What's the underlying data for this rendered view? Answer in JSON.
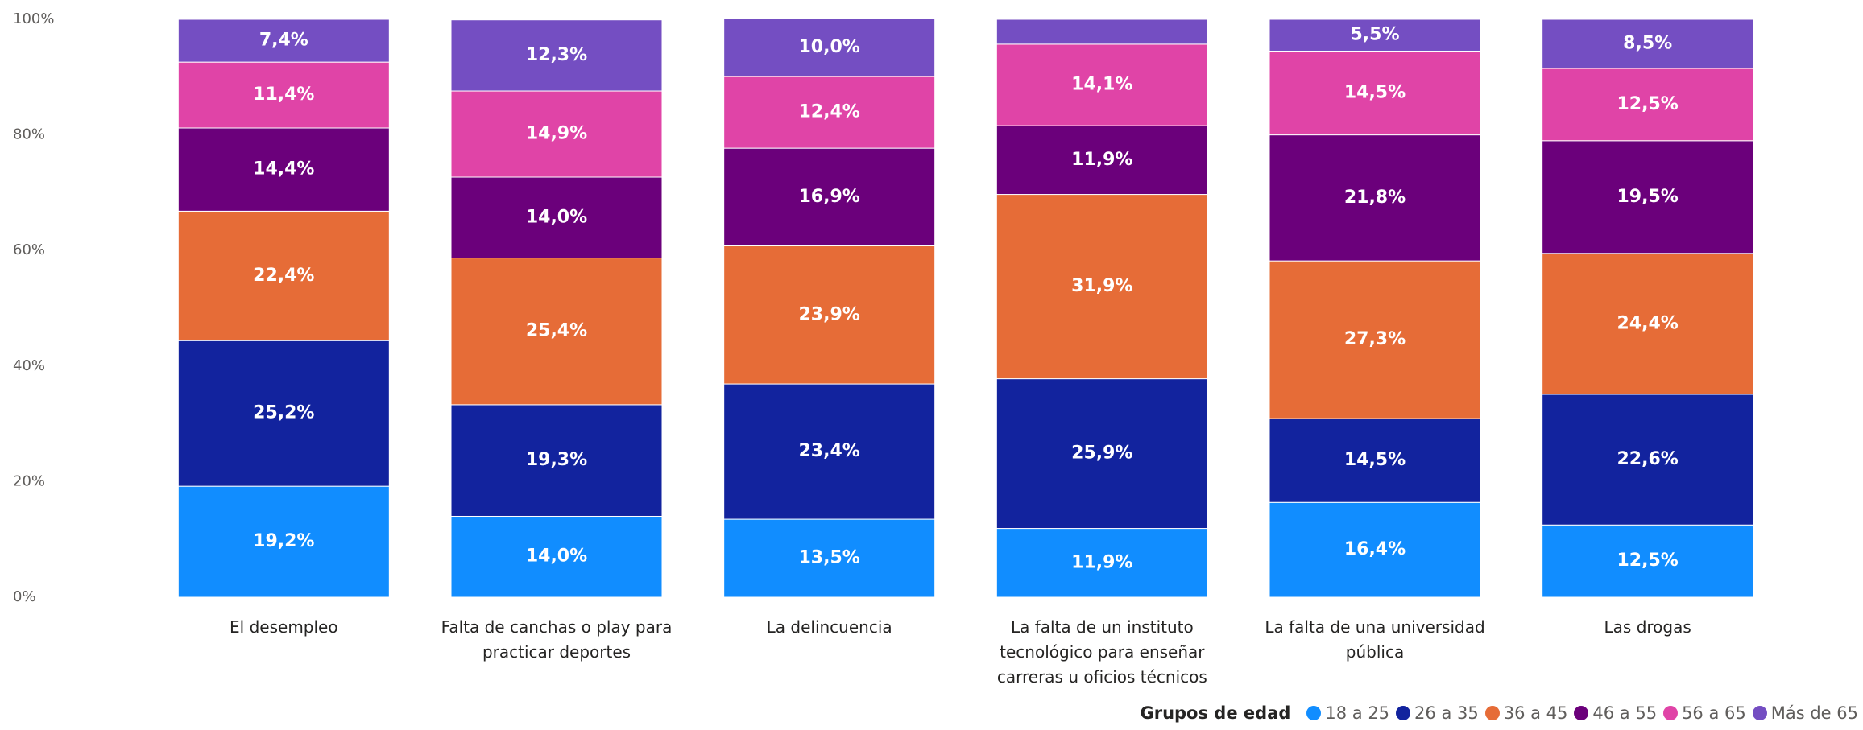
{
  "chart_data": {
    "type": "stacked_bar_100",
    "categories": [
      "El desempleo",
      "Falta de canchas o play para practicar deportes",
      "La delincuencia",
      "La falta de un instituto tecnológico para enseñar carreras u oficios técnicos",
      "La falta de una universidad pública",
      "Las drogas"
    ],
    "series": [
      {
        "name": "18 a 25",
        "color": "#118DFF",
        "values": [
          19.2,
          14.0,
          13.5,
          11.9,
          16.4,
          12.5
        ],
        "value_labels": [
          "19,2%",
          "14,0%",
          "13,5%",
          "11,9%",
          "16,4%",
          "12,5%"
        ]
      },
      {
        "name": "26 a 35",
        "color": "#12239E",
        "values": [
          25.2,
          19.3,
          23.4,
          25.9,
          14.5,
          22.6
        ],
        "value_labels": [
          "25,2%",
          "19,3%",
          "23,4%",
          "25,9%",
          "14,5%",
          "22,6%"
        ]
      },
      {
        "name": "36 a 45",
        "color": "#E66C37",
        "values": [
          22.4,
          25.4,
          23.9,
          31.9,
          27.3,
          24.4
        ],
        "value_labels": [
          "22,4%",
          "25,4%",
          "23,9%",
          "31,9%",
          "27,3%",
          "24,4%"
        ]
      },
      {
        "name": "46 a 55",
        "color": "#6B007B",
        "values": [
          14.4,
          14.0,
          16.9,
          11.9,
          21.8,
          19.5
        ],
        "value_labels": [
          "14,4%",
          "14,0%",
          "16,9%",
          "11,9%",
          "21,8%",
          "19,5%"
        ]
      },
      {
        "name": "56 a 65",
        "color": "#E044A7",
        "values": [
          11.4,
          14.9,
          12.4,
          14.1,
          14.5,
          12.5
        ],
        "value_labels": [
          "11,4%",
          "14,9%",
          "12,4%",
          "14,1%",
          "14,5%",
          "12,5%"
        ]
      },
      {
        "name": "Más de 65",
        "color": "#744EC2",
        "values": [
          7.4,
          12.3,
          10.0,
          4.3,
          5.5,
          8.5
        ],
        "value_labels": [
          "7,4%",
          "12,3%",
          "10,0%",
          null,
          "5,5%",
          "8,5%"
        ]
      }
    ],
    "ylim": [
      0,
      100
    ],
    "yticks": [
      {
        "value": 0,
        "label": "0%"
      },
      {
        "value": 20,
        "label": "20%"
      },
      {
        "value": 40,
        "label": "40%"
      },
      {
        "value": 60,
        "label": "60%"
      },
      {
        "value": 80,
        "label": "80%"
      },
      {
        "value": 100,
        "label": "100%"
      }
    ],
    "grid": false,
    "legend_title": "Grupos de edad",
    "legend_position": "bottom-right"
  }
}
